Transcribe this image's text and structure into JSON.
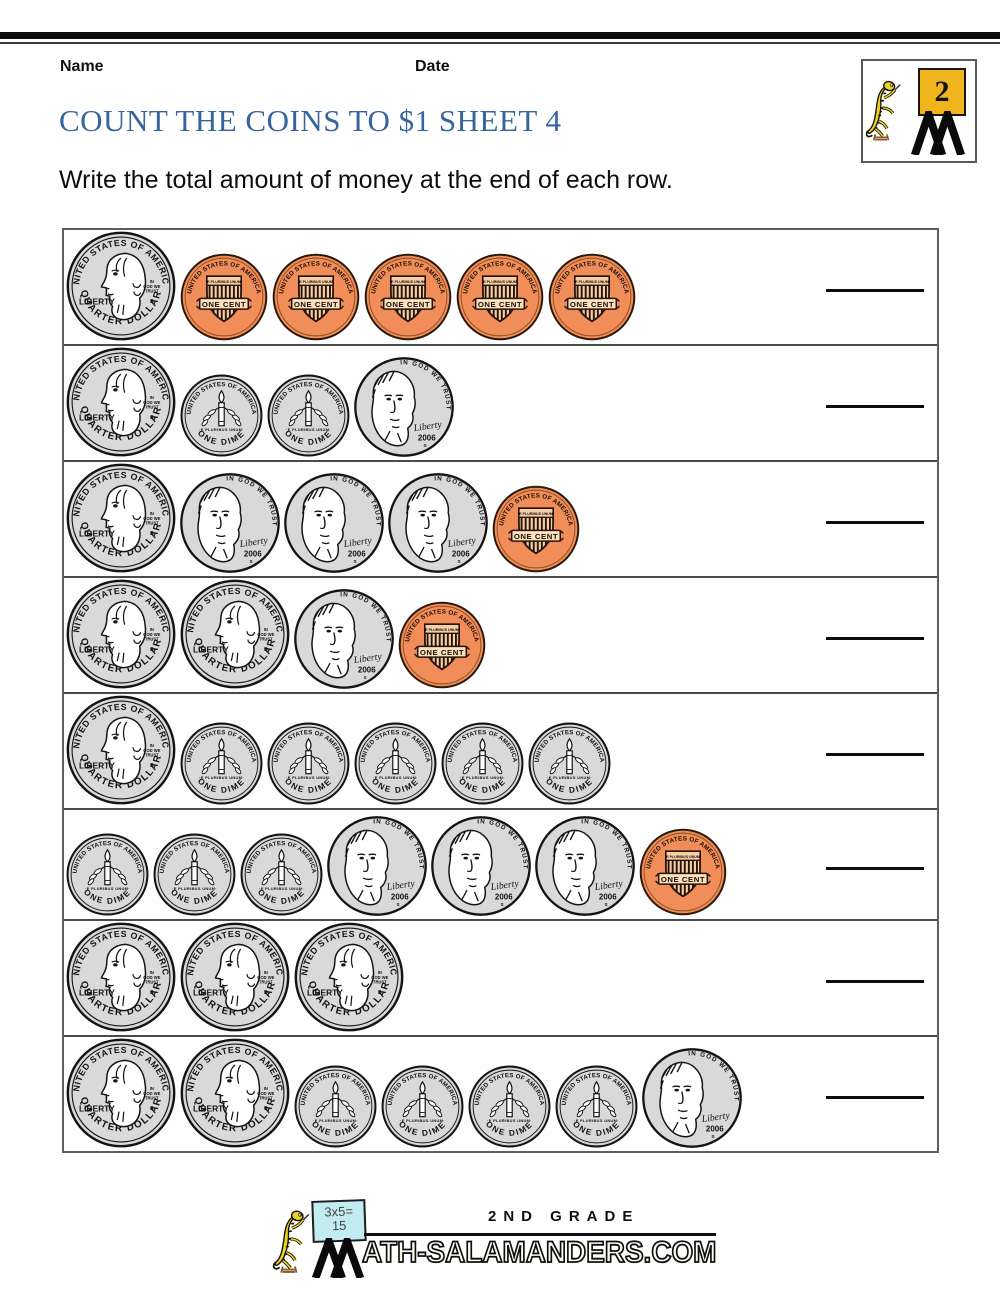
{
  "header": {
    "name_label": "Name",
    "date_label": "Date",
    "title": "COUNT THE COINS TO $1 SHEET 4",
    "instruction": "Write the total amount of money at the end of each row.",
    "logo": {
      "grade_number": "2"
    }
  },
  "coin_art": {
    "quarter": {
      "top_text": "UNITED STATES OF AMERICA",
      "left_text": "LIBERTY",
      "motto_lines": [
        "IN",
        "GOD WE",
        "TRUST"
      ],
      "mint": "S",
      "bottom_text": "QUARTER DOLLAR",
      "diameter": 112,
      "fill": "#d9d9d9"
    },
    "dime": {
      "top_text": "UNITED STATES OF AMERICA",
      "middle_text": "·E PLURIBUS UNUM·",
      "bottom_text": "ONE DIME",
      "diameter": 85,
      "fill": "#d9d9d9"
    },
    "nickel": {
      "motto_text": "IN GOD WE TRUST",
      "liberty_text": "Liberty",
      "year_text": "2006",
      "mint": "S",
      "diameter": 102,
      "fill": "#d9d9d9"
    },
    "penny": {
      "top_text": "UNITED STATES OF AMERICA",
      "band_text": "E PLURIBUS UNUM",
      "banner_text": "ONE CENT",
      "diameter": 90,
      "fill": "#f08d58"
    }
  },
  "rows": [
    {
      "coins": [
        "quarter",
        "penny",
        "penny",
        "penny",
        "penny",
        "penny"
      ]
    },
    {
      "coins": [
        "quarter",
        "dime",
        "dime",
        "nickel"
      ]
    },
    {
      "coins": [
        "quarter",
        "nickel",
        "nickel",
        "nickel",
        "penny"
      ]
    },
    {
      "coins": [
        "quarter",
        "quarter",
        "nickel",
        "penny"
      ]
    },
    {
      "coins": [
        "quarter",
        "dime",
        "dime",
        "dime",
        "dime",
        "dime"
      ]
    },
    {
      "coins": [
        "dime",
        "dime",
        "dime",
        "nickel",
        "nickel",
        "nickel",
        "penny"
      ]
    },
    {
      "coins": [
        "quarter",
        "quarter",
        "quarter"
      ]
    },
    {
      "coins": [
        "quarter",
        "quarter",
        "dime",
        "dime",
        "dime",
        "dime",
        "nickel"
      ]
    }
  ],
  "footer": {
    "grade_text": "2ND GRADE",
    "site_text": "ATH-SALAMANDERS.COM",
    "sign_line1": "3x5=",
    "sign_line2": "15"
  },
  "colors": {
    "title_blue": "#36649e",
    "penny_orange": "#f08d58",
    "coin_silver": "#d9d9d9",
    "logo_yellow": "#f0b41c",
    "salamander_yellow": "#e9d226"
  }
}
